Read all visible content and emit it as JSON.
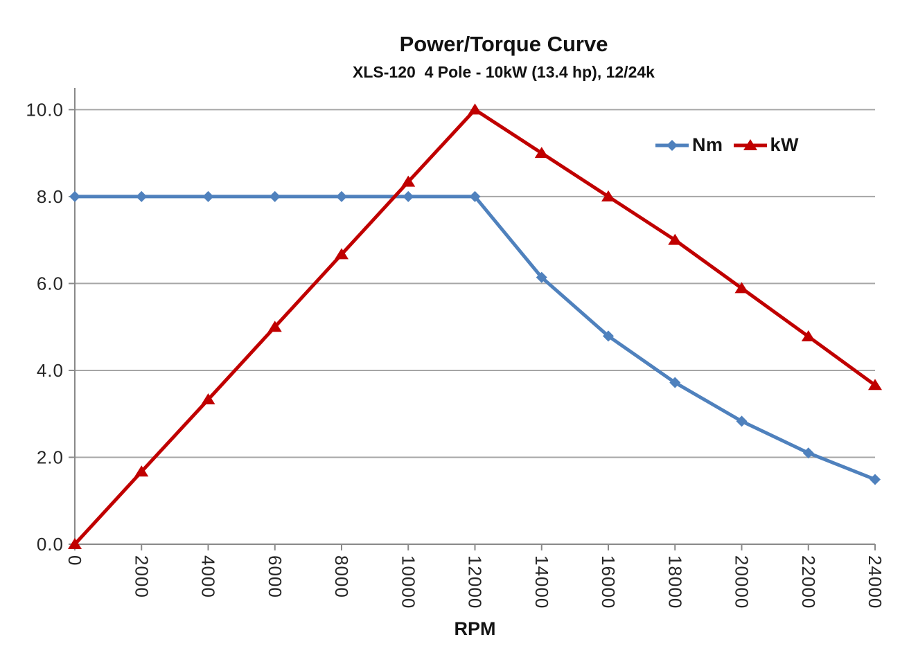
{
  "chart_data": {
    "type": "line",
    "title": "Power/Torque Curve",
    "subtitle": "XLS-120  4 Pole - 10kW (13.4 hp), 12/24k",
    "xlabel": "RPM",
    "ylabel": "",
    "x": [
      0,
      2000,
      4000,
      6000,
      8000,
      10000,
      12000,
      14000,
      16000,
      18000,
      20000,
      22000,
      24000
    ],
    "x_tick_labels": [
      "0",
      "2000",
      "4000",
      "6000",
      "8000",
      "10000",
      "12000",
      "14000",
      "16000",
      "18000",
      "20000",
      "22000",
      "24000"
    ],
    "series": [
      {
        "name": "Nm",
        "marker": "diamond",
        "color": "#4F81BD",
        "values": [
          8.0,
          8.0,
          8.0,
          8.0,
          8.0,
          8.0,
          8.0,
          6.14,
          4.79,
          3.72,
          2.83,
          2.1,
          1.49
        ]
      },
      {
        "name": "kW",
        "marker": "triangle",
        "color": "#C00000",
        "values": [
          0.0,
          1.67,
          3.33,
          5.0,
          6.67,
          8.34,
          10.0,
          9.0,
          8.0,
          7.0,
          5.89,
          4.78,
          3.66
        ]
      }
    ],
    "ylim": [
      0,
      10.5
    ],
    "yticks": [
      0,
      2,
      4,
      6,
      8,
      10
    ],
    "ytick_labels": [
      "0.0",
      "2.0",
      "4.0",
      "6.0",
      "8.0",
      "10.0"
    ],
    "grid": "horizontal-only",
    "legend_position": "top-right-inside",
    "x_tick_label_rotation_deg": 90,
    "colors": {
      "gridline": "#A6A6A6",
      "axis": "#898989",
      "tick_text": "#262626",
      "background": "#FFFFFF"
    }
  }
}
